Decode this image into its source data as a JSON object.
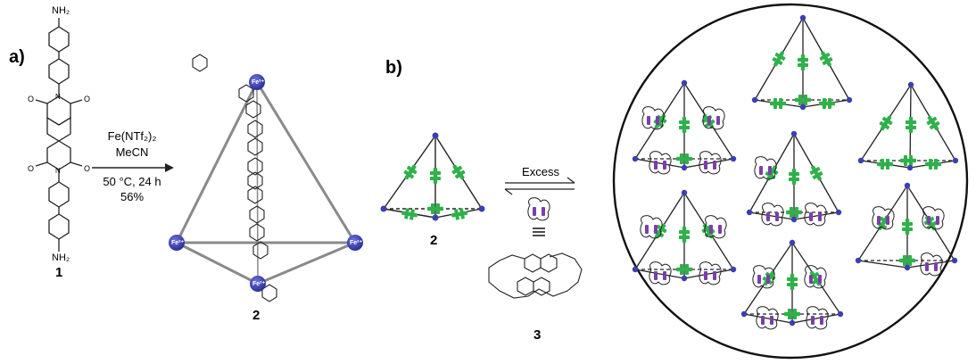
{
  "panels": {
    "a": "a)",
    "b": "b)"
  },
  "compounds": {
    "c1": "1",
    "c2": "2",
    "c2b": "2",
    "c3": "3",
    "nh2_top": "NH₂",
    "nh2_bottom": "NH₂"
  },
  "conditions": {
    "reagent": "Fe(NTf₂)₂",
    "solvent": "MeCN",
    "temp_time": "50 °C, 24 h",
    "yield": "56%"
  },
  "equilibrium": {
    "label": "Excess"
  },
  "metal_label": "Fe²⁺",
  "colors": {
    "metal": "#3b3fb0",
    "ndi": "#2fb14a",
    "crown_naphthalene": "#7a3fa8",
    "bond": "#222222",
    "cage_edge": "#8a8a8a"
  }
}
